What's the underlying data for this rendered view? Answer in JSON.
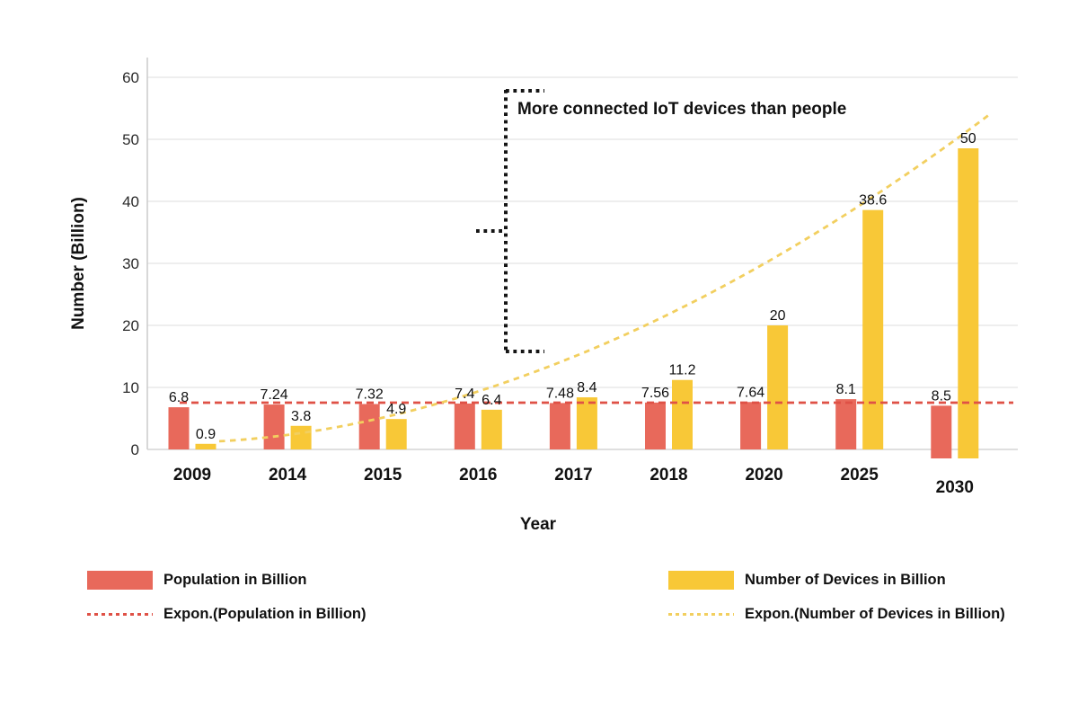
{
  "chart_data": {
    "type": "bar",
    "categories": [
      "2009",
      "2014",
      "2015",
      "2016",
      "2017",
      "2018",
      "2020",
      "2025",
      "2030"
    ],
    "series": [
      {
        "name": "Population in Billion",
        "color": "#e8695b",
        "values": [
          6.8,
          7.24,
          7.32,
          7.4,
          7.48,
          7.56,
          7.64,
          8.1,
          8.5
        ]
      },
      {
        "name": "Number of Devices in Billion",
        "color": "#f8c837",
        "values": [
          0.9,
          3.8,
          4.9,
          6.4,
          8.4,
          11.2,
          20,
          38.6,
          50
        ]
      }
    ],
    "trendlines": [
      {
        "name": "Expon.(Population in Billion)",
        "color": "#df5146",
        "style": "dashed",
        "shape": "flat",
        "level": 7.6
      },
      {
        "name": "Expon.(Number of Devices in Billion)",
        "color": "#f2cf5f",
        "style": "dashed",
        "shape": "exponential",
        "from": 1.5,
        "to": 54
      }
    ],
    "xlabel": "Year",
    "ylabel": "Number (Billion)",
    "yticks": [
      0,
      10,
      20,
      30,
      40,
      50,
      60
    ],
    "ylim": [
      0,
      60
    ],
    "grid": "horizontal",
    "legend_position": "bottom",
    "annotation": "More connected IoT devices than people",
    "text_color": "#111111",
    "gridline_color": "#e4e4e4",
    "axis_line_color": "#cccccc",
    "bracket_color": "#151515"
  }
}
